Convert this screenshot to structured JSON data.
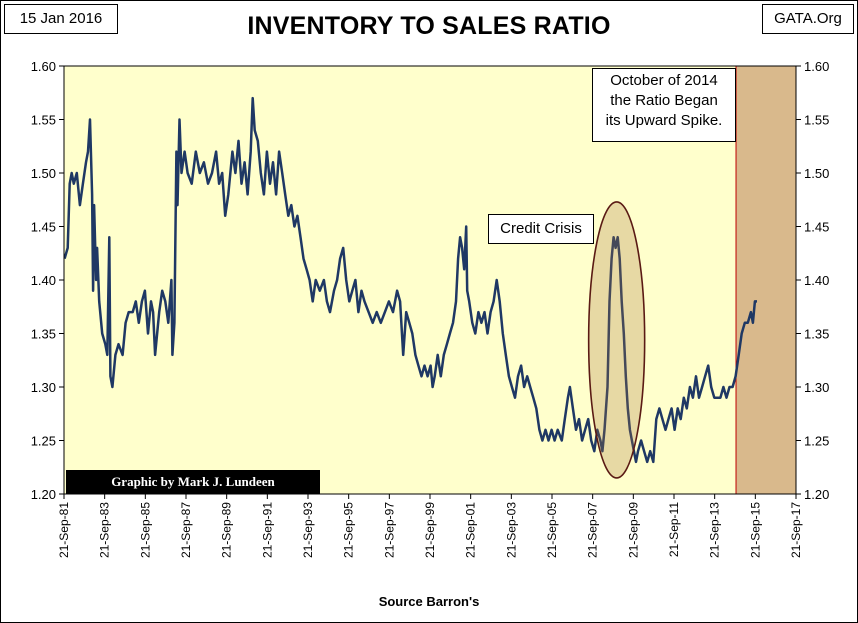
{
  "header": {
    "date": "15 Jan 2016",
    "source_tag": "GATA.Org"
  },
  "chart_data": {
    "type": "line",
    "title": "INVENTORY TO SALES RATIO",
    "xlabel": "Source Barron's",
    "ylabel": "",
    "ylim": [
      1.2,
      1.6
    ],
    "yticks": [
      "1.20",
      "1.25",
      "1.30",
      "1.35",
      "1.40",
      "1.45",
      "1.50",
      "1.55",
      "1.60"
    ],
    "xlim": [
      1981.72,
      2017.72
    ],
    "xticks": [
      "21-Sep-81",
      "21-Sep-83",
      "21-Sep-85",
      "21-Sep-87",
      "21-Sep-89",
      "21-Sep-91",
      "21-Sep-93",
      "21-Sep-95",
      "21-Sep-97",
      "21-Sep-99",
      "21-Sep-01",
      "21-Sep-03",
      "21-Sep-05",
      "21-Sep-07",
      "21-Sep-09",
      "21-Sep-11",
      "21-Sep-13",
      "21-Sep-15",
      "21-Sep-17"
    ],
    "grid": false,
    "background": "#ffffcc",
    "line_color": "#1f3864",
    "highlight_color": "#d9b98c",
    "highlight_range": [
      2014.77,
      2017.72
    ],
    "series": [
      {
        "values": [
          [
            1981.75,
            1.42
          ],
          [
            1981.9,
            1.43
          ],
          [
            1982.0,
            1.49
          ],
          [
            1982.1,
            1.5
          ],
          [
            1982.2,
            1.49
          ],
          [
            1982.35,
            1.5
          ],
          [
            1982.5,
            1.47
          ],
          [
            1982.65,
            1.49
          ],
          [
            1982.8,
            1.51
          ],
          [
            1982.9,
            1.52
          ],
          [
            1983.0,
            1.55
          ],
          [
            1983.1,
            1.48
          ],
          [
            1983.15,
            1.39
          ],
          [
            1983.2,
            1.47
          ],
          [
            1983.3,
            1.4
          ],
          [
            1983.35,
            1.43
          ],
          [
            1983.45,
            1.38
          ],
          [
            1983.6,
            1.35
          ],
          [
            1983.75,
            1.34
          ],
          [
            1983.85,
            1.33
          ],
          [
            1983.95,
            1.44
          ],
          [
            1984.0,
            1.31
          ],
          [
            1984.1,
            1.3
          ],
          [
            1984.25,
            1.33
          ],
          [
            1984.4,
            1.34
          ],
          [
            1984.6,
            1.33
          ],
          [
            1984.75,
            1.36
          ],
          [
            1984.9,
            1.37
          ],
          [
            1985.1,
            1.37
          ],
          [
            1985.25,
            1.38
          ],
          [
            1985.4,
            1.36
          ],
          [
            1985.55,
            1.38
          ],
          [
            1985.7,
            1.39
          ],
          [
            1985.85,
            1.35
          ],
          [
            1986.0,
            1.38
          ],
          [
            1986.1,
            1.37
          ],
          [
            1986.2,
            1.33
          ],
          [
            1986.4,
            1.37
          ],
          [
            1986.55,
            1.39
          ],
          [
            1986.7,
            1.38
          ],
          [
            1986.85,
            1.36
          ],
          [
            1987.0,
            1.4
          ],
          [
            1987.05,
            1.33
          ],
          [
            1987.15,
            1.36
          ],
          [
            1987.25,
            1.52
          ],
          [
            1987.3,
            1.47
          ],
          [
            1987.4,
            1.55
          ],
          [
            1987.5,
            1.5
          ],
          [
            1987.65,
            1.52
          ],
          [
            1987.8,
            1.5
          ],
          [
            1988.0,
            1.49
          ],
          [
            1988.2,
            1.52
          ],
          [
            1988.4,
            1.5
          ],
          [
            1988.6,
            1.51
          ],
          [
            1988.8,
            1.49
          ],
          [
            1989.0,
            1.5
          ],
          [
            1989.2,
            1.52
          ],
          [
            1989.35,
            1.49
          ],
          [
            1989.5,
            1.5
          ],
          [
            1989.65,
            1.46
          ],
          [
            1989.8,
            1.48
          ],
          [
            1990.0,
            1.52
          ],
          [
            1990.15,
            1.5
          ],
          [
            1990.3,
            1.53
          ],
          [
            1990.45,
            1.49
          ],
          [
            1990.6,
            1.51
          ],
          [
            1990.75,
            1.48
          ],
          [
            1990.9,
            1.52
          ],
          [
            1991.0,
            1.57
          ],
          [
            1991.1,
            1.54
          ],
          [
            1991.25,
            1.53
          ],
          [
            1991.4,
            1.5
          ],
          [
            1991.55,
            1.48
          ],
          [
            1991.7,
            1.52
          ],
          [
            1991.85,
            1.49
          ],
          [
            1992.0,
            1.51
          ],
          [
            1992.15,
            1.48
          ],
          [
            1992.3,
            1.52
          ],
          [
            1992.45,
            1.5
          ],
          [
            1992.6,
            1.48
          ],
          [
            1992.75,
            1.46
          ],
          [
            1992.9,
            1.47
          ],
          [
            1993.05,
            1.45
          ],
          [
            1993.2,
            1.46
          ],
          [
            1993.35,
            1.44
          ],
          [
            1993.5,
            1.42
          ],
          [
            1993.65,
            1.41
          ],
          [
            1993.8,
            1.4
          ],
          [
            1993.95,
            1.38
          ],
          [
            1994.1,
            1.4
          ],
          [
            1994.3,
            1.39
          ],
          [
            1994.5,
            1.4
          ],
          [
            1994.65,
            1.38
          ],
          [
            1994.8,
            1.37
          ],
          [
            1995.0,
            1.39
          ],
          [
            1995.15,
            1.4
          ],
          [
            1995.3,
            1.42
          ],
          [
            1995.45,
            1.43
          ],
          [
            1995.6,
            1.4
          ],
          [
            1995.75,
            1.38
          ],
          [
            1995.9,
            1.39
          ],
          [
            1996.05,
            1.4
          ],
          [
            1996.2,
            1.37
          ],
          [
            1996.35,
            1.39
          ],
          [
            1996.5,
            1.38
          ],
          [
            1996.7,
            1.37
          ],
          [
            1996.9,
            1.36
          ],
          [
            1997.1,
            1.37
          ],
          [
            1997.3,
            1.36
          ],
          [
            1997.5,
            1.37
          ],
          [
            1997.7,
            1.38
          ],
          [
            1997.9,
            1.37
          ],
          [
            1998.1,
            1.39
          ],
          [
            1998.25,
            1.38
          ],
          [
            1998.4,
            1.33
          ],
          [
            1998.55,
            1.37
          ],
          [
            1998.7,
            1.36
          ],
          [
            1998.85,
            1.35
          ],
          [
            1999.0,
            1.33
          ],
          [
            1999.15,
            1.32
          ],
          [
            1999.3,
            1.31
          ],
          [
            1999.45,
            1.32
          ],
          [
            1999.6,
            1.31
          ],
          [
            1999.75,
            1.32
          ],
          [
            1999.85,
            1.3
          ],
          [
            1999.95,
            1.31
          ],
          [
            2000.1,
            1.33
          ],
          [
            2000.25,
            1.31
          ],
          [
            2000.4,
            1.33
          ],
          [
            2000.55,
            1.34
          ],
          [
            2000.7,
            1.35
          ],
          [
            2000.85,
            1.36
          ],
          [
            2001.0,
            1.38
          ],
          [
            2001.1,
            1.42
          ],
          [
            2001.2,
            1.44
          ],
          [
            2001.3,
            1.43
          ],
          [
            2001.4,
            1.41
          ],
          [
            2001.5,
            1.45
          ],
          [
            2001.55,
            1.39
          ],
          [
            2001.65,
            1.38
          ],
          [
            2001.8,
            1.36
          ],
          [
            2001.95,
            1.35
          ],
          [
            2002.1,
            1.37
          ],
          [
            2002.25,
            1.36
          ],
          [
            2002.4,
            1.37
          ],
          [
            2002.55,
            1.35
          ],
          [
            2002.7,
            1.37
          ],
          [
            2002.85,
            1.38
          ],
          [
            2003.0,
            1.4
          ],
          [
            2003.15,
            1.38
          ],
          [
            2003.3,
            1.35
          ],
          [
            2003.45,
            1.33
          ],
          [
            2003.6,
            1.31
          ],
          [
            2003.75,
            1.3
          ],
          [
            2003.9,
            1.29
          ],
          [
            2004.05,
            1.31
          ],
          [
            2004.2,
            1.32
          ],
          [
            2004.35,
            1.3
          ],
          [
            2004.5,
            1.31
          ],
          [
            2004.65,
            1.3
          ],
          [
            2004.8,
            1.29
          ],
          [
            2004.95,
            1.28
          ],
          [
            2005.1,
            1.26
          ],
          [
            2005.25,
            1.25
          ],
          [
            2005.4,
            1.26
          ],
          [
            2005.55,
            1.25
          ],
          [
            2005.7,
            1.26
          ],
          [
            2005.85,
            1.25
          ],
          [
            2006.0,
            1.26
          ],
          [
            2006.2,
            1.25
          ],
          [
            2006.35,
            1.27
          ],
          [
            2006.5,
            1.29
          ],
          [
            2006.6,
            1.3
          ],
          [
            2006.75,
            1.28
          ],
          [
            2006.9,
            1.26
          ],
          [
            2007.05,
            1.27
          ],
          [
            2007.2,
            1.25
          ],
          [
            2007.35,
            1.26
          ],
          [
            2007.5,
            1.27
          ],
          [
            2007.65,
            1.25
          ],
          [
            2007.8,
            1.24
          ],
          [
            2007.95,
            1.26
          ],
          [
            2008.1,
            1.25
          ],
          [
            2008.2,
            1.24
          ],
          [
            2008.3,
            1.26
          ],
          [
            2008.45,
            1.3
          ],
          [
            2008.55,
            1.38
          ],
          [
            2008.65,
            1.42
          ],
          [
            2008.75,
            1.44
          ],
          [
            2008.85,
            1.43
          ],
          [
            2008.95,
            1.44
          ],
          [
            2009.05,
            1.42
          ],
          [
            2009.15,
            1.38
          ],
          [
            2009.25,
            1.35
          ],
          [
            2009.35,
            1.31
          ],
          [
            2009.45,
            1.28
          ],
          [
            2009.55,
            1.26
          ],
          [
            2009.65,
            1.25
          ],
          [
            2009.75,
            1.24
          ],
          [
            2009.85,
            1.23
          ],
          [
            2009.95,
            1.24
          ],
          [
            2010.1,
            1.25
          ],
          [
            2010.25,
            1.24
          ],
          [
            2010.4,
            1.23
          ],
          [
            2010.55,
            1.24
          ],
          [
            2010.7,
            1.23
          ],
          [
            2010.85,
            1.27
          ],
          [
            2011.0,
            1.28
          ],
          [
            2011.15,
            1.27
          ],
          [
            2011.3,
            1.26
          ],
          [
            2011.45,
            1.27
          ],
          [
            2011.6,
            1.28
          ],
          [
            2011.75,
            1.26
          ],
          [
            2011.9,
            1.28
          ],
          [
            2012.05,
            1.27
          ],
          [
            2012.2,
            1.29
          ],
          [
            2012.35,
            1.28
          ],
          [
            2012.5,
            1.3
          ],
          [
            2012.65,
            1.29
          ],
          [
            2012.8,
            1.31
          ],
          [
            2012.95,
            1.29
          ],
          [
            2013.1,
            1.3
          ],
          [
            2013.25,
            1.31
          ],
          [
            2013.4,
            1.32
          ],
          [
            2013.55,
            1.3
          ],
          [
            2013.7,
            1.29
          ],
          [
            2013.85,
            1.29
          ],
          [
            2014.0,
            1.29
          ],
          [
            2014.15,
            1.3
          ],
          [
            2014.3,
            1.29
          ],
          [
            2014.45,
            1.3
          ],
          [
            2014.6,
            1.3
          ],
          [
            2014.75,
            1.31
          ],
          [
            2014.9,
            1.33
          ],
          [
            2015.05,
            1.35
          ],
          [
            2015.2,
            1.36
          ],
          [
            2015.35,
            1.36
          ],
          [
            2015.5,
            1.37
          ],
          [
            2015.6,
            1.36
          ],
          [
            2015.7,
            1.38
          ],
          [
            2015.8,
            1.38
          ]
        ]
      }
    ],
    "annotations": [
      {
        "id": "credit_crisis",
        "text": "Credit Crisis"
      },
      {
        "id": "october_2014",
        "lines": [
          "October of 2014",
          "the Ratio Began",
          "its Upward Spike."
        ]
      }
    ],
    "credit": "Graphic by Mark J. Lundeen"
  }
}
